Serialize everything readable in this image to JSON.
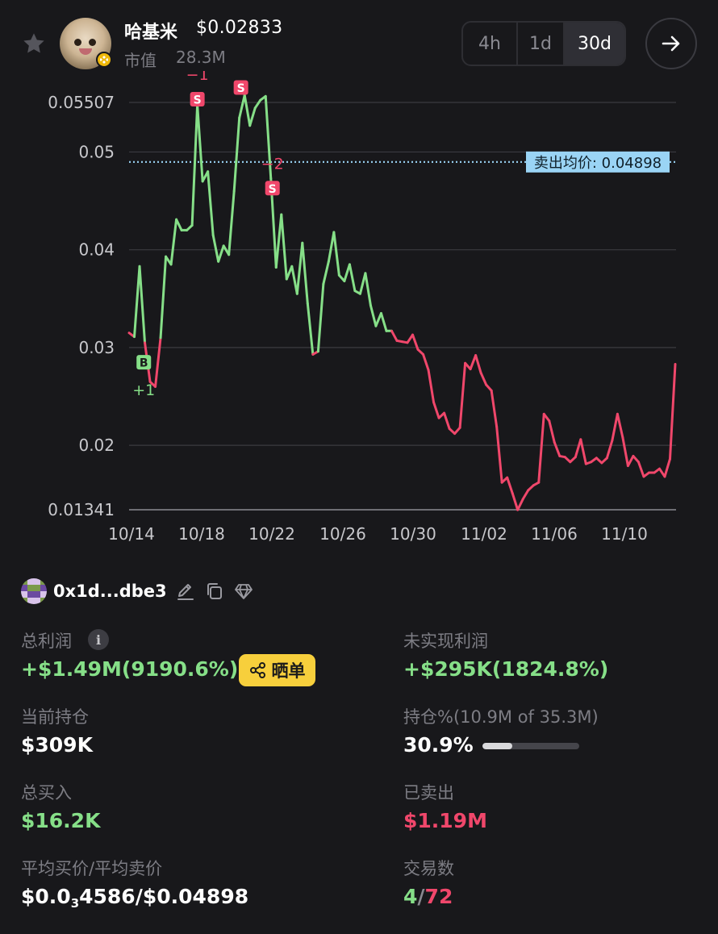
{
  "header": {
    "token_name": "哈基米",
    "price": "$0.02833",
    "mcap_label": "市值",
    "mcap_value": "28.3M",
    "timeframes": [
      "4h",
      "1d",
      "30d"
    ],
    "active_timeframe": "30d",
    "icons": {
      "favorite": "star-icon",
      "chain": "bnb-chain-icon",
      "open": "arrow-right-icon"
    }
  },
  "chart": {
    "y_ticks": [
      "0.05507",
      "0.05",
      "0.04",
      "0.03",
      "0.02",
      "0.01341"
    ],
    "x_ticks": [
      "10/14",
      "10/18",
      "10/22",
      "10/26",
      "10/30",
      "11/02",
      "11/06",
      "11/10"
    ],
    "avg_sell_label": "卖出均价: 0.04898",
    "markers": [
      {
        "type": "B",
        "count": "+1"
      },
      {
        "type": "S",
        "count": "−1"
      },
      {
        "type": "S",
        "count": ""
      },
      {
        "type": "S",
        "count": "−2"
      }
    ],
    "colors": {
      "up": "#86df88",
      "down": "#f0476b",
      "avg_line": "#9ad4f5"
    }
  },
  "chart_data": {
    "type": "line",
    "title": "",
    "xlabel": "",
    "ylabel": "",
    "x_tick_labels": [
      "10/14",
      "10/18",
      "10/22",
      "10/26",
      "10/30",
      "11/02",
      "11/06",
      "11/10"
    ],
    "ylim": [
      0.01341,
      0.05507
    ],
    "reference_lines": [
      {
        "label": "卖出均价",
        "value": 0.04898
      }
    ],
    "series": [
      {
        "values": [
          0.0315,
          0.0311,
          0.0383,
          0.0305,
          0.0265,
          0.026,
          0.031,
          0.0393,
          0.0385,
          0.0431,
          0.042,
          0.042,
          0.0425,
          0.0548,
          0.047,
          0.048,
          0.0415,
          0.0388,
          0.0404,
          0.0395,
          0.046,
          0.0535,
          0.0558,
          0.0527,
          0.0545,
          0.0553,
          0.0557,
          0.0473,
          0.0382,
          0.0436,
          0.037,
          0.0383,
          0.0355,
          0.0407,
          0.0345,
          0.0293,
          0.0296,
          0.0365,
          0.0388,
          0.0418,
          0.0374,
          0.0368,
          0.0385,
          0.0358,
          0.0355,
          0.0376,
          0.0343,
          0.0322,
          0.0335,
          0.0317,
          0.0317,
          0.0307,
          0.0306,
          0.0305,
          0.0313,
          0.0298,
          0.0293,
          0.0277,
          0.0244,
          0.0228,
          0.0233,
          0.0217,
          0.0212,
          0.0218,
          0.0284,
          0.0278,
          0.0292,
          0.0274,
          0.0262,
          0.0256,
          0.0219,
          0.0162,
          0.0167,
          0.0151,
          0.0134,
          0.0145,
          0.0154,
          0.0159,
          0.0162,
          0.0232,
          0.0225,
          0.0203,
          0.0189,
          0.0188,
          0.0183,
          0.0188,
          0.0206,
          0.0181,
          0.0183,
          0.0187,
          0.0182,
          0.0187,
          0.0205,
          0.0232,
          0.0208,
          0.0179,
          0.0189,
          0.0183,
          0.0168,
          0.0172,
          0.0172,
          0.0176,
          0.0168,
          0.0186,
          0.0283
        ]
      }
    ]
  },
  "wallet": {
    "address": "0x1d...dbe3",
    "icons": {
      "edit": "pencil-icon",
      "copy": "copy-icon",
      "vip": "diamond-icon"
    }
  },
  "stats": {
    "total_profit_label": "总利润",
    "total_profit_value": "+$1.49M(9190.6%)",
    "share_label": "晒单",
    "unrealized_label": "未实现利润",
    "unrealized_value": "+$295K(1824.8%)",
    "position_label": "当前持仓",
    "position_value": "$309K",
    "holding_pct_label": "持仓%(10.9M of 35.3M)",
    "holding_pct_value": "30.9%",
    "holding_fraction": 0.309,
    "bought_label": "总买入",
    "bought_value": "$16.2K",
    "sold_label": "已卖出",
    "sold_value": "$1.19M",
    "avg_price_label": "平均买价/平均卖价",
    "avg_buy_prefix": "$0.0",
    "avg_buy_sub": "3",
    "avg_buy_rest": "4586",
    "avg_sell_value": "/$0.04898",
    "trades_label": "交易数",
    "trades_buy": "4",
    "trades_sep": "/",
    "trades_sell": "72"
  }
}
